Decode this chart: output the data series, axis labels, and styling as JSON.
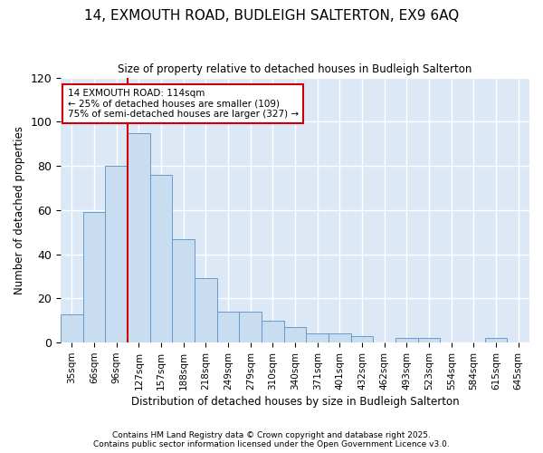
{
  "title": "14, EXMOUTH ROAD, BUDLEIGH SALTERTON, EX9 6AQ",
  "subtitle": "Size of property relative to detached houses in Budleigh Salterton",
  "xlabel": "Distribution of detached houses by size in Budleigh Salterton",
  "ylabel": "Number of detached properties",
  "categories": [
    "35sqm",
    "66sqm",
    "96sqm",
    "127sqm",
    "157sqm",
    "188sqm",
    "218sqm",
    "249sqm",
    "279sqm",
    "310sqm",
    "340sqm",
    "371sqm",
    "401sqm",
    "432sqm",
    "462sqm",
    "493sqm",
    "523sqm",
    "554sqm",
    "584sqm",
    "615sqm",
    "645sqm"
  ],
  "values": [
    13,
    59,
    80,
    95,
    76,
    47,
    29,
    14,
    14,
    10,
    7,
    4,
    4,
    3,
    0,
    2,
    2,
    0,
    0,
    2,
    0
  ],
  "bar_color": "#c8ddf0",
  "bar_edge_color": "#6699cc",
  "background_color": "#dce8f5",
  "grid_color": "#ffffff",
  "annotation_text": "14 EXMOUTH ROAD: 114sqm\n← 25% of detached houses are smaller (109)\n75% of semi-detached houses are larger (327) →",
  "annotation_box_color": "#ffffff",
  "annotation_box_edge": "#cc0000",
  "vline_color": "#cc0000",
  "ylim": [
    0,
    120
  ],
  "yticks": [
    0,
    20,
    40,
    60,
    80,
    100,
    120
  ],
  "footer1": "Contains HM Land Registry data © Crown copyright and database right 2025.",
  "footer2": "Contains public sector information licensed under the Open Government Licence v3.0.",
  "fig_bg": "#ffffff"
}
